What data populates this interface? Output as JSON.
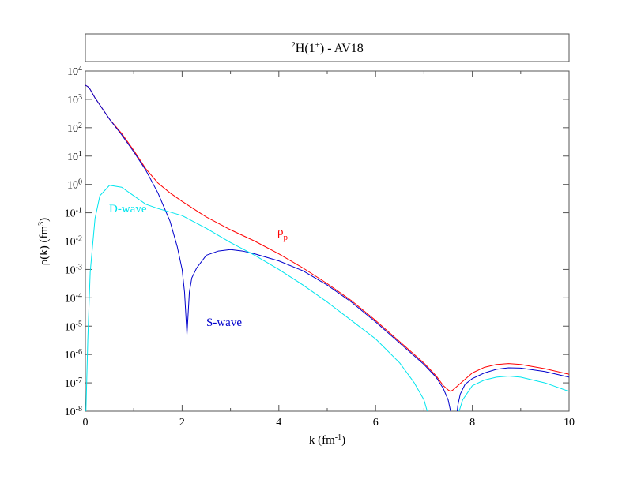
{
  "chart_data": {
    "type": "line",
    "title": {
      "superscript_mass": "2",
      "base": "H(1",
      "superscript_parity": "+",
      "suffix": ") - AV18"
    },
    "xlabel": {
      "prefix": "k (fm",
      "exponent": "-1",
      "suffix": ")"
    },
    "ylabel": {
      "prefix": "ρ(k) (fm",
      "exponent": "3",
      "suffix": ")"
    },
    "xlim": [
      0,
      10
    ],
    "ylim_log10": [
      -8,
      4
    ],
    "yscale": "log",
    "x_ticks": [
      0,
      2,
      4,
      6,
      8,
      10
    ],
    "x_tick_labels": [
      "0",
      "2",
      "4",
      "6",
      "8",
      "10"
    ],
    "y_tick_exponents": [
      "-8",
      "-7",
      "-6",
      "-5",
      "-4",
      "-3",
      "-2",
      "-1",
      "0",
      "1",
      "2",
      "3",
      "4"
    ],
    "y_tick_base": "10",
    "grid": false,
    "colors": {
      "rho_p": "#ff0000",
      "s_wave": "#0000cc",
      "d_wave": "#00e5ee"
    },
    "annotations": {
      "rho_p": {
        "base": "ρ",
        "subscript": "p"
      },
      "s_wave": "S-wave",
      "d_wave": "D-wave"
    },
    "series": [
      {
        "key": "rho_p",
        "x": [
          0,
          0.05,
          0.1,
          0.2,
          0.3,
          0.5,
          0.75,
          1.0,
          1.25,
          1.5,
          1.75,
          2.0,
          2.5,
          3.0,
          3.5,
          4.0,
          4.5,
          5.0,
          5.5,
          6.0,
          6.5,
          7.0,
          7.25,
          7.4,
          7.5,
          7.55,
          7.6,
          7.7,
          7.8,
          8.0,
          8.25,
          8.5,
          8.75,
          9.0,
          9.5,
          10.0
        ],
        "log10_y": [
          3.5,
          3.45,
          3.35,
          3.05,
          2.8,
          2.3,
          1.8,
          1.2,
          0.55,
          0.05,
          -0.3,
          -0.6,
          -1.15,
          -1.6,
          -2.0,
          -2.45,
          -2.95,
          -3.5,
          -4.1,
          -4.8,
          -5.55,
          -6.3,
          -6.75,
          -7.1,
          -7.25,
          -7.3,
          -7.25,
          -7.1,
          -6.95,
          -6.65,
          -6.45,
          -6.35,
          -6.32,
          -6.35,
          -6.5,
          -6.7
        ]
      },
      {
        "key": "s_wave",
        "x": [
          0,
          0.05,
          0.1,
          0.2,
          0.3,
          0.5,
          0.75,
          1.0,
          1.25,
          1.5,
          1.75,
          1.9,
          2.0,
          2.05,
          2.1,
          2.15,
          2.2,
          2.3,
          2.5,
          2.75,
          3.0,
          3.25,
          3.5,
          4.0,
          4.5,
          5.0,
          5.5,
          6.0,
          6.5,
          7.0,
          7.25,
          7.4,
          7.5,
          7.55,
          7.65,
          7.7,
          7.75,
          7.85,
          8.0,
          8.25,
          8.5,
          8.75,
          9.0,
          9.5,
          10.0
        ],
        "log10_y": [
          3.5,
          3.45,
          3.35,
          3.05,
          2.8,
          2.3,
          1.75,
          1.15,
          0.5,
          -0.3,
          -1.3,
          -2.2,
          -3.0,
          -3.8,
          -5.3,
          -3.8,
          -3.3,
          -2.95,
          -2.5,
          -2.35,
          -2.3,
          -2.35,
          -2.45,
          -2.7,
          -3.05,
          -3.55,
          -4.15,
          -4.85,
          -5.6,
          -6.35,
          -6.8,
          -7.2,
          -7.6,
          -8.0,
          -8.6,
          -7.8,
          -7.4,
          -7.05,
          -6.85,
          -6.65,
          -6.52,
          -6.47,
          -6.48,
          -6.6,
          -6.8
        ]
      },
      {
        "key": "d_wave",
        "x": [
          0,
          0.02,
          0.05,
          0.1,
          0.2,
          0.3,
          0.5,
          0.75,
          1.0,
          1.25,
          1.5,
          2.0,
          2.5,
          3.0,
          3.5,
          4.0,
          4.5,
          5.0,
          5.5,
          6.0,
          6.5,
          6.8,
          7.0,
          7.1,
          7.15,
          7.2,
          7.25,
          7.5,
          7.6,
          7.7,
          7.8,
          8.0,
          8.25,
          8.5,
          8.75,
          9.0,
          9.5,
          10.0
        ],
        "log10_y": [
          -8.8,
          -7.5,
          -5.5,
          -3.1,
          -1.2,
          -0.4,
          -0.03,
          -0.1,
          -0.4,
          -0.7,
          -0.85,
          -1.1,
          -1.55,
          -2.05,
          -2.5,
          -3.0,
          -3.55,
          -4.15,
          -4.8,
          -5.45,
          -6.3,
          -7.0,
          -7.6,
          -8.2,
          -8.7,
          -9.3,
          -10.5,
          -10.5,
          -8.9,
          -8.15,
          -7.6,
          -7.1,
          -6.9,
          -6.8,
          -6.76,
          -6.8,
          -7.0,
          -7.3
        ]
      }
    ]
  }
}
